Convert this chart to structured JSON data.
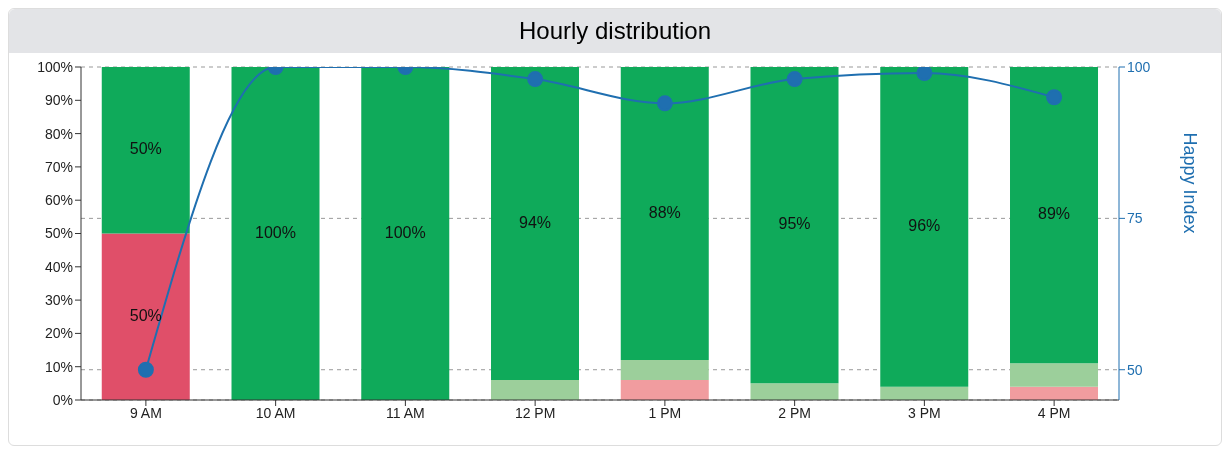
{
  "chart_data": {
    "type": "bar",
    "title": "Hourly distribution",
    "y2label": "Happy Index",
    "stacked": true,
    "categories": [
      "9 AM",
      "10 AM",
      "11 AM",
      "12 PM",
      "1 PM",
      "2 PM",
      "3 PM",
      "4 PM"
    ],
    "series": [
      {
        "color": "#e04f69",
        "values": [
          50,
          null,
          null,
          null,
          null,
          null,
          null,
          null
        ],
        "value_labels": [
          "50%",
          null,
          null,
          null,
          null,
          null,
          null,
          null
        ]
      },
      {
        "color": "#f19c9f",
        "values": [
          null,
          null,
          null,
          null,
          6,
          null,
          null,
          4
        ],
        "value_labels": [
          null,
          null,
          null,
          null,
          null,
          null,
          null,
          null
        ]
      },
      {
        "color": "#9ccf9b",
        "values": [
          null,
          null,
          null,
          6,
          6,
          5,
          4,
          7
        ],
        "value_labels": [
          null,
          null,
          null,
          null,
          null,
          null,
          null,
          null
        ]
      },
      {
        "color": "#0faa5a",
        "values": [
          50,
          100,
          100,
          94,
          88,
          95,
          96,
          89
        ],
        "value_labels": [
          "50%",
          "100%",
          "100%",
          "94%",
          "88%",
          "95%",
          "96%",
          "89%"
        ]
      },
      {
        "type": "line",
        "axis": "y2",
        "color": "#1f6fb0",
        "values": [
          50,
          100,
          100,
          98,
          94,
          98,
          99,
          95
        ]
      }
    ],
    "ylim": [
      0,
      100
    ],
    "yticks": [
      {
        "value": 0,
        "label": "0%"
      },
      {
        "value": 10,
        "label": "10%"
      },
      {
        "value": 20,
        "label": "20%"
      },
      {
        "value": 30,
        "label": "30%"
      },
      {
        "value": 40,
        "label": "40%"
      },
      {
        "value": 50,
        "label": "50%"
      },
      {
        "value": 60,
        "label": "60%"
      },
      {
        "value": 70,
        "label": "70%"
      },
      {
        "value": 80,
        "label": "80%"
      },
      {
        "value": 90,
        "label": "90%"
      },
      {
        "value": 100,
        "label": "100%"
      }
    ],
    "y2lim": [
      45,
      100
    ],
    "y2ticks": [
      50,
      75,
      100
    ],
    "grid": "y",
    "marker": "circle",
    "line_style": "solid",
    "legend": false
  }
}
